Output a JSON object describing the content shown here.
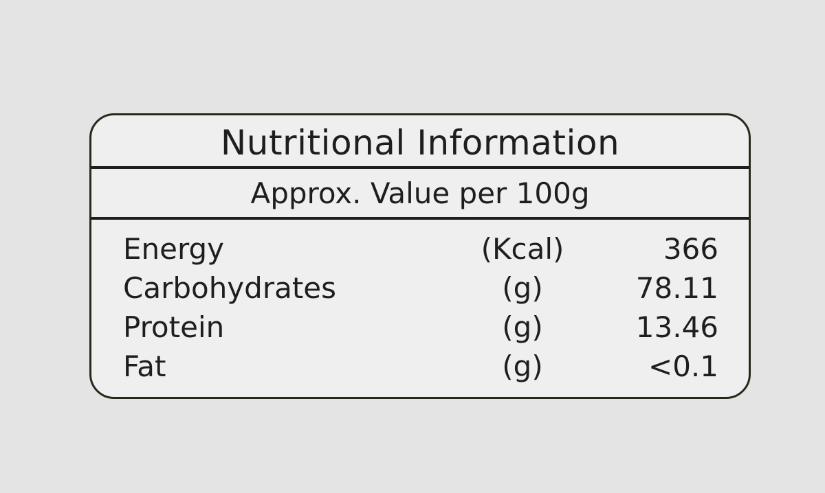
{
  "title": "Nutritional Information",
  "subtitle": "Approx. Value per 100g",
  "rows": [
    {
      "name": "Energy",
      "unit": "(Kcal)",
      "value": "366"
    },
    {
      "name": "Carbohydrates",
      "unit": "(g)",
      "value": "78.11"
    },
    {
      "name": "Protein",
      "unit": "(g)",
      "value": "13.46"
    },
    {
      "name": "Fat",
      "unit": "(g)",
      "value": "<0.1"
    }
  ]
}
